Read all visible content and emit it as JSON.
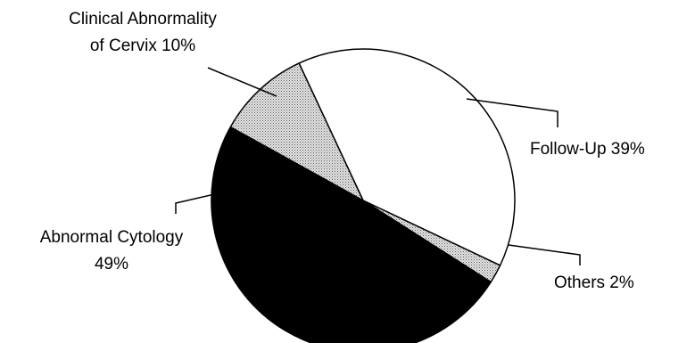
{
  "chart_data": {
    "type": "pie",
    "title": "",
    "slices": [
      {
        "label": "Follow-Up",
        "value": 39,
        "pct_text": "39%",
        "fill": "#ffffff",
        "pattern": "none"
      },
      {
        "label": "Others",
        "value": 2,
        "pct_text": "2%",
        "fill": "#d9d9d9",
        "pattern": "dots"
      },
      {
        "label": "Abnormal Cytology",
        "value": 49,
        "pct_text": "49%",
        "fill": "#000000",
        "pattern": "none"
      },
      {
        "label": "Clinical Abnormality of Cervix",
        "value": 10,
        "pct_text": "10%",
        "fill": "#d9d9d9",
        "pattern": "dots"
      }
    ],
    "labels": {
      "follow_up": "Follow-Up 39%",
      "others": "Others 2%",
      "abnormal_line1": "Abnormal Cytology",
      "abnormal_line2": "49%",
      "clinical_line1": "Clinical Abnormality",
      "clinical_line2": "of Cervix 10%"
    },
    "legend": "none",
    "grid": false
  }
}
